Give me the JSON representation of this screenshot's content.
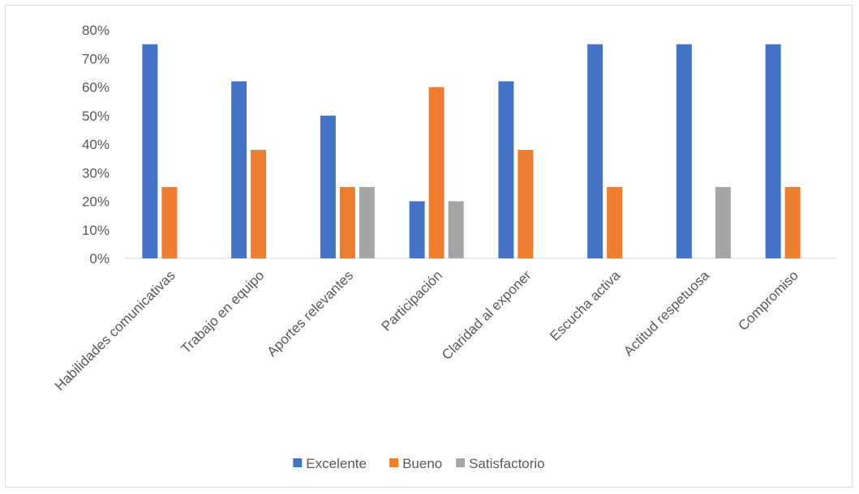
{
  "chart_data": {
    "type": "bar",
    "categories": [
      "Habilidades comunicativas",
      "Trabajo en equipo",
      "Aportes relevantes",
      "Participación",
      "Claridad al exponer",
      "Escucha activa",
      "Actitud respetuosa",
      "Compromiso"
    ],
    "series": [
      {
        "name": "Excelente",
        "color": "#4472C4",
        "values": [
          75,
          62,
          50,
          20,
          62,
          75,
          75,
          75
        ]
      },
      {
        "name": "Bueno",
        "color": "#ED7D31",
        "values": [
          25,
          38,
          25,
          60,
          38,
          25,
          0,
          25
        ]
      },
      {
        "name": "Satisfactorio",
        "color": "#A5A5A5",
        "values": [
          0,
          0,
          25,
          20,
          0,
          0,
          25,
          0
        ]
      }
    ],
    "yticks": [
      "0%",
      "10%",
      "20%",
      "30%",
      "40%",
      "50%",
      "60%",
      "70%",
      "80%"
    ],
    "ylim": [
      0,
      80
    ],
    "grid": false,
    "legend_position": "bottom"
  }
}
